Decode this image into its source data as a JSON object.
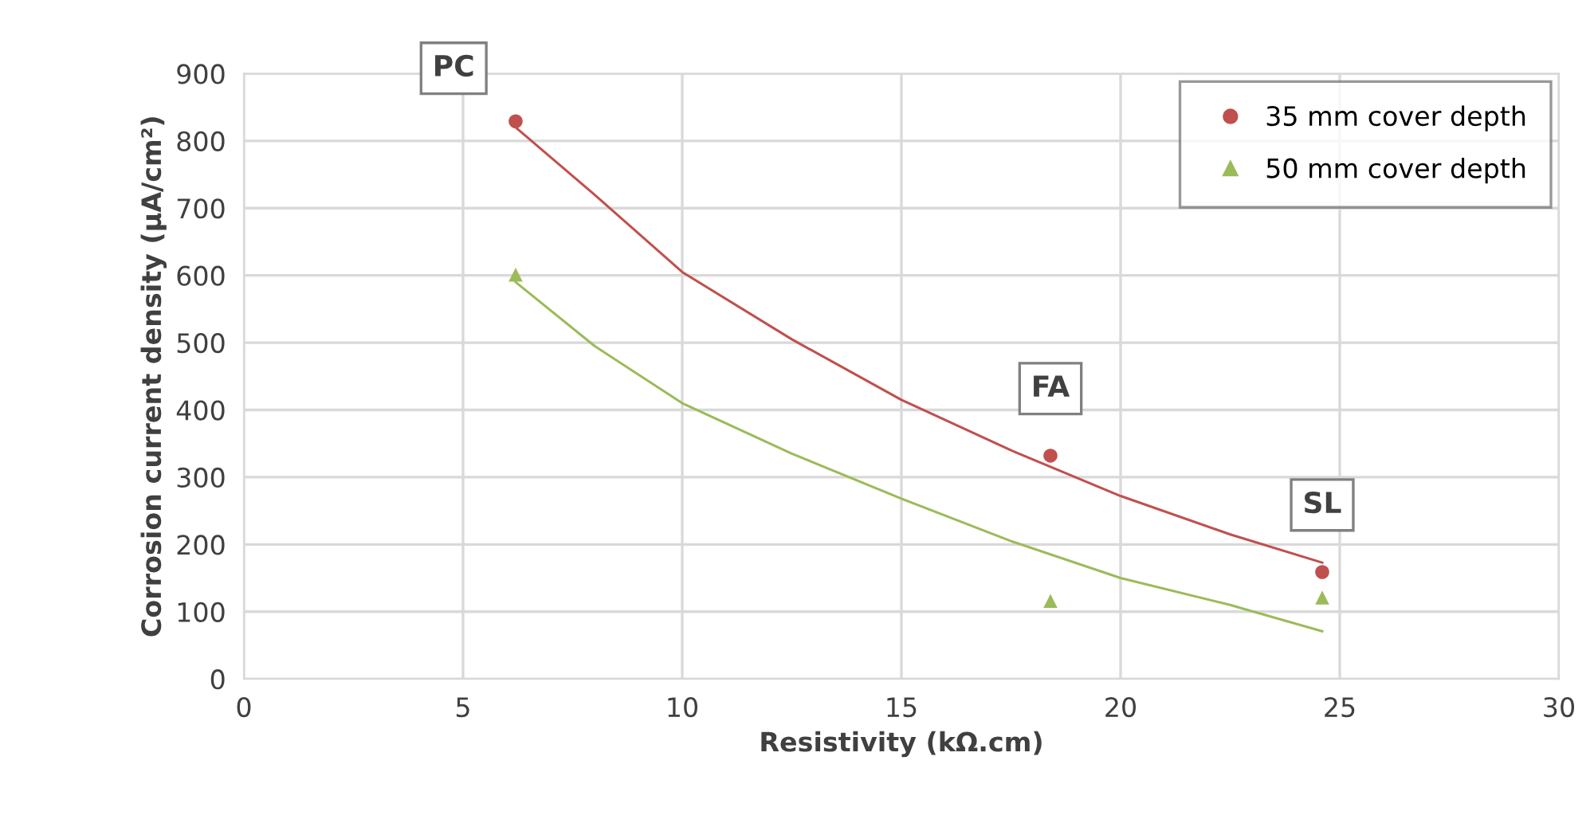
{
  "chart_data": {
    "type": "scatter",
    "xlabel": "Resistivity (kΩ.cm)",
    "ylabel": "Corrosion current density (μA/cm²)",
    "xlim": [
      0,
      30
    ],
    "xticks": [
      0,
      5,
      10,
      15,
      20,
      25,
      30
    ],
    "ylim": [
      0,
      900
    ],
    "yticks": [
      0,
      100,
      200,
      300,
      400,
      500,
      600,
      700,
      800,
      900
    ],
    "grid": true,
    "legend": "top right",
    "series": [
      {
        "name": "35 mm cover depth",
        "marker": "circle",
        "color": "#c0504d",
        "x": [
          6.2,
          18.4,
          24.6
        ],
        "values": [
          829,
          332,
          159
        ]
      },
      {
        "name": "50 mm cover depth",
        "marker": "triangle",
        "color": "#9bbb59",
        "x": [
          6.2,
          18.4,
          24.6
        ],
        "values": [
          601,
          116,
          121
        ]
      },
      {
        "type": "line",
        "color": "#c0504d",
        "x": [
          6.2,
          8,
          10,
          12.5,
          15,
          17.5,
          20,
          22.5,
          24.6
        ],
        "values": [
          820,
          720,
          605,
          505,
          415,
          340,
          272,
          215,
          173
        ]
      },
      {
        "type": "line",
        "color": "#9bbb59",
        "x": [
          6.2,
          8,
          10,
          12.5,
          15,
          17.5,
          20,
          22.5,
          24.6
        ],
        "values": [
          590,
          495,
          410,
          335,
          268,
          205,
          150,
          110,
          71
        ]
      }
    ],
    "annotations": [
      {
        "text": "PC",
        "x": 6.2,
        "y": 829
      },
      {
        "text": "FA",
        "x": 18.4,
        "y": 332
      },
      {
        "text": "SL",
        "x": 24.6,
        "y": 159
      }
    ]
  }
}
